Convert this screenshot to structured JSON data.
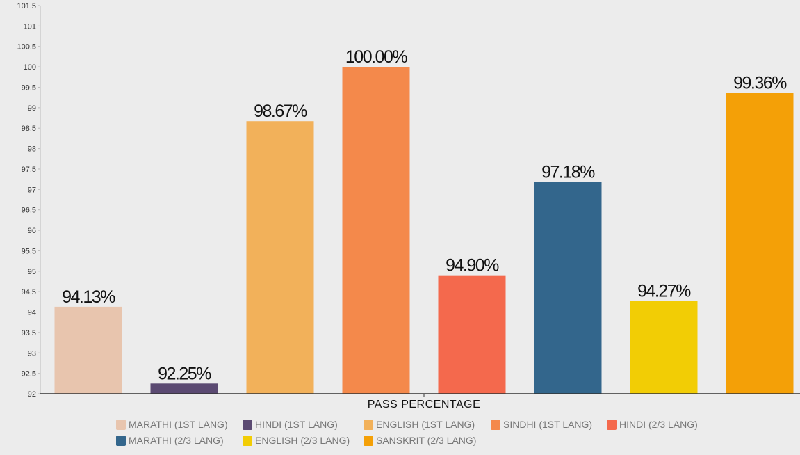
{
  "chart_data": {
    "type": "bar",
    "xlabel": "PASS PERCENTAGE",
    "ylabel": "",
    "ylim": [
      92,
      101.5
    ],
    "yticks": [
      92,
      92.5,
      93,
      93.5,
      94,
      94.5,
      95,
      95.5,
      96,
      96.5,
      97,
      97.5,
      98,
      98.5,
      99,
      99.5,
      100,
      100.5,
      101,
      101.5
    ],
    "legend_placement": "bottom",
    "grid": false,
    "series": [
      {
        "name": "MARATHI (1ST LANG)",
        "value": 94.13,
        "label": "94.13%",
        "color": "#e8c5ae"
      },
      {
        "name": "HINDI (1ST LANG)",
        "value": 92.25,
        "label": "92.25%",
        "color": "#5b4a72"
      },
      {
        "name": "ENGLISH (1ST LANG)",
        "value": 98.67,
        "label": "98.67%",
        "color": "#f2b15a"
      },
      {
        "name": "SINDHI (1ST LANG)",
        "value": 100.0,
        "label": "100.00%",
        "color": "#f4894b"
      },
      {
        "name": "HINDI (2/3 LANG)",
        "value": 94.9,
        "label": "94.90%",
        "color": "#f4694d"
      },
      {
        "name": "MARATHI (2/3 LANG)",
        "value": 97.18,
        "label": "97.18%",
        "color": "#33668c"
      },
      {
        "name": "ENGLISH (2/3 LANG)",
        "value": 94.27,
        "label": "94.27%",
        "color": "#f2cd05"
      },
      {
        "name": "SANSKRIT (2/3 LANG)",
        "value": 99.36,
        "label": "99.36%",
        "color": "#f4a007"
      }
    ]
  }
}
